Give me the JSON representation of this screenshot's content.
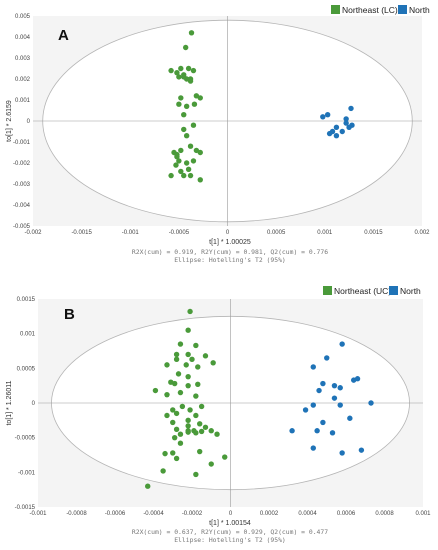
{
  "colors": {
    "northeast": "#4a9a3a",
    "north": "#1f73b7",
    "ellipse": "#b5b5b5",
    "axis": "#999999"
  },
  "chart_data": [
    {
      "type": "scatter",
      "panel_label": "A",
      "xlabel": "t[1] * 1.00025",
      "ylabel": "to[1] * 2.6159",
      "xlim": [
        -0.002,
        0.002
      ],
      "ylim": [
        -0.005,
        0.005
      ],
      "xticks": [
        "-0.002",
        "-0.0015",
        "-0.001",
        "-0.0005",
        "0",
        "0.0005",
        "0.001",
        "0.0015",
        "0.002"
      ],
      "xtick_values": [
        -0.002,
        -0.0015,
        -0.001,
        -0.0005,
        0,
        0.0005,
        0.001,
        0.0015,
        0.002
      ],
      "yticks": [
        "0.005",
        "0.004",
        "0.003",
        "0.002",
        "0.001",
        "0",
        "-0.001",
        "-0.002",
        "-0.003",
        "-0.004",
        "-0.005"
      ],
      "ytick_values": [
        0.005,
        0.004,
        0.003,
        0.002,
        0.001,
        0,
        -0.001,
        -0.002,
        -0.003,
        -0.004,
        -0.005
      ],
      "ellipse": {
        "rx": 0.0019,
        "ry": 0.0048
      },
      "stats_line1": "R2X(cum) = 0.919, R2Y(cum) = 0.981, Q2(cum) = 0.776",
      "stats_line2": "Ellipse: Hotelling's T2 (95%)",
      "legend_placement": "top-right",
      "series": [
        {
          "name": "Northeast (LC)",
          "color": "#4a9a3a",
          "points": [
            [
              -0.00037,
              0.0042
            ],
            [
              -0.00043,
              0.0035
            ],
            [
              -0.00048,
              0.0025
            ],
            [
              -0.0004,
              0.0025
            ],
            [
              -0.00035,
              0.0024
            ],
            [
              -0.00052,
              0.0023
            ],
            [
              -0.00045,
              0.0022
            ],
            [
              -0.0005,
              0.0021
            ],
            [
              -0.00042,
              0.002
            ],
            [
              -0.00038,
              0.002
            ],
            [
              -0.00032,
              0.0012
            ],
            [
              -0.00028,
              0.0011
            ],
            [
              -0.00048,
              0.0011
            ],
            [
              -0.00034,
              0.0008
            ],
            [
              -0.0005,
              0.0008
            ],
            [
              -0.00042,
              0.0007
            ],
            [
              -0.00045,
              0.0003
            ],
            [
              -0.00035,
              -0.0002
            ],
            [
              -0.00045,
              -0.0004
            ],
            [
              -0.00042,
              -0.0007
            ],
            [
              -0.00032,
              -0.0014
            ],
            [
              -0.00055,
              -0.0015
            ],
            [
              -0.00052,
              -0.0016
            ],
            [
              -0.00028,
              -0.0015
            ],
            [
              -0.0005,
              -0.0019
            ],
            [
              -0.00042,
              -0.002
            ],
            [
              -0.00035,
              -0.0019
            ],
            [
              -0.00053,
              -0.0021
            ],
            [
              -0.0004,
              -0.0023
            ],
            [
              -0.00048,
              -0.0024
            ],
            [
              -0.00045,
              -0.0026
            ],
            [
              -0.00038,
              -0.0026
            ],
            [
              -0.00058,
              -0.0026
            ],
            [
              -0.00028,
              -0.0028
            ],
            [
              -0.00048,
              -0.0014
            ],
            [
              -0.00038,
              -0.0012
            ],
            [
              -0.00045,
              0.0021
            ],
            [
              -0.00058,
              0.0024
            ],
            [
              -0.00038,
              0.0019
            ],
            [
              -0.00052,
              -0.0017
            ]
          ]
        },
        {
          "name": "North",
          "color": "#1f73b7",
          "points": [
            [
              0.00127,
              0.0006
            ],
            [
              0.00103,
              0.0003
            ],
            [
              0.00098,
              0.0002
            ],
            [
              0.00122,
              0.0001
            ],
            [
              0.00128,
              -0.0002
            ],
            [
              0.00125,
              -0.0003
            ],
            [
              0.00112,
              -0.0003
            ],
            [
              0.00118,
              -0.0005
            ],
            [
              0.00112,
              -0.0007
            ],
            [
              0.00105,
              -0.0006
            ],
            [
              0.00122,
              -0.0001
            ],
            [
              0.00108,
              -0.0005
            ]
          ]
        }
      ]
    },
    {
      "type": "scatter",
      "panel_label": "B",
      "xlabel": "t[1] * 1.00154",
      "ylabel": "to[1] * 1.26011",
      "xlim": [
        -0.001,
        0.001
      ],
      "ylim": [
        -0.0015,
        0.0015
      ],
      "xticks": [
        "-0.001",
        "-0.0008",
        "-0.0006",
        "-0.0004",
        "-0.0002",
        "0",
        "0.0002",
        "0.0004",
        "0.0006",
        "0.0008",
        "0.001"
      ],
      "xtick_values": [
        -0.001,
        -0.0008,
        -0.0006,
        -0.0004,
        -0.0002,
        0,
        0.0002,
        0.0004,
        0.0006,
        0.0008,
        0.001
      ],
      "yticks": [
        "0.0015",
        "0.001",
        "0.0005",
        "0",
        "-0.0005",
        "-0.001",
        "-0.0015"
      ],
      "ytick_values": [
        0.0015,
        0.001,
        0.0005,
        0,
        -0.0005,
        -0.001,
        -0.0015
      ],
      "ellipse": {
        "rx": 0.00093,
        "ry": 0.00125
      },
      "stats_line1": "R2X(cum) = 0.637, R2Y(cum) = 0.929, Q2(cum) = 0.477",
      "stats_line2": "Ellipse: Hotelling's T2 (95%)",
      "legend_placement": "top-right",
      "series": [
        {
          "name": "Northeast (UC)",
          "color": "#4a9a3a",
          "points": [
            [
              -0.00021,
              0.00132
            ],
            [
              -0.00022,
              0.00105
            ],
            [
              -0.00026,
              0.00085
            ],
            [
              -0.00018,
              0.00083
            ],
            [
              -0.00028,
              0.0007
            ],
            [
              -0.00022,
              0.0007
            ],
            [
              -0.00013,
              0.00068
            ],
            [
              -0.00028,
              0.00063
            ],
            [
              -0.0002,
              0.00063
            ],
            [
              -0.00033,
              0.00055
            ],
            [
              -0.00023,
              0.00055
            ],
            [
              -0.00017,
              0.00052
            ],
            [
              -9e-05,
              0.00058
            ],
            [
              -0.00027,
              0.00042
            ],
            [
              -0.00022,
              0.00038
            ],
            [
              -0.00031,
              0.0003
            ],
            [
              -0.00029,
              0.00028
            ],
            [
              -0.00022,
              0.00025
            ],
            [
              -0.00017,
              0.00027
            ],
            [
              -0.00039,
              0.00018
            ],
            [
              -0.00026,
              0.00015
            ],
            [
              -0.00018,
              0.0001
            ],
            [
              -0.00033,
              0.00012
            ],
            [
              -0.00025,
              -5e-05
            ],
            [
              -0.0003,
              -0.0001
            ],
            [
              -0.00021,
              -0.0001
            ],
            [
              -0.00015,
              -5e-05
            ],
            [
              -0.00028,
              -0.00015
            ],
            [
              -0.00033,
              -0.00018
            ],
            [
              -0.00018,
              -0.00018
            ],
            [
              -0.00022,
              -0.00025
            ],
            [
              -0.0003,
              -0.00028
            ],
            [
              -0.00016,
              -0.0003
            ],
            [
              -0.00013,
              -0.00035
            ],
            [
              -0.00022,
              -0.0004
            ],
            [
              -0.00018,
              -0.00043
            ],
            [
              -0.00015,
              -0.00041
            ],
            [
              -0.0001,
              -0.0004
            ],
            [
              -7e-05,
              -0.00045
            ],
            [
              -0.00026,
              -0.00045
            ],
            [
              -0.00022,
              -0.00042
            ],
            [
              -0.00019,
              -0.0004
            ],
            [
              -0.00029,
              -0.0005
            ],
            [
              -0.00026,
              -0.00058
            ],
            [
              -0.0003,
              -0.00072
            ],
            [
              -0.00028,
              -0.0008
            ],
            [
              -0.00016,
              -0.0007
            ],
            [
              -3e-05,
              -0.00078
            ],
            [
              -0.0001,
              -0.00088
            ],
            [
              -0.00035,
              -0.00098
            ],
            [
              -0.00034,
              -0.00073
            ],
            [
              -0.00018,
              -0.00103
            ],
            [
              -0.00043,
              -0.0012
            ],
            [
              -0.00022,
              -0.00033
            ],
            [
              -0.00028,
              -0.00038
            ]
          ]
        },
        {
          "name": "North",
          "color": "#1f73b7",
          "points": [
            [
              0.00058,
              0.00085
            ],
            [
              0.0005,
              0.00065
            ],
            [
              0.00043,
              0.00052
            ],
            [
              0.00066,
              0.00035
            ],
            [
              0.00064,
              0.00033
            ],
            [
              0.00048,
              0.00028
            ],
            [
              0.00054,
              0.00025
            ],
            [
              0.00057,
              0.00022
            ],
            [
              0.00046,
              0.00018
            ],
            [
              0.00054,
              7e-05
            ],
            [
              0.00073,
              0.0
            ],
            [
              0.00057,
              -3e-05
            ],
            [
              0.00043,
              -3e-05
            ],
            [
              0.00039,
              -0.0001
            ],
            [
              0.00062,
              -0.00022
            ],
            [
              0.00048,
              -0.00028
            ],
            [
              0.00032,
              -0.0004
            ],
            [
              0.00045,
              -0.0004
            ],
            [
              0.00053,
              -0.00043
            ],
            [
              0.00043,
              -0.00065
            ],
            [
              0.00058,
              -0.00072
            ],
            [
              0.00068,
              -0.00068
            ]
          ]
        }
      ]
    }
  ]
}
